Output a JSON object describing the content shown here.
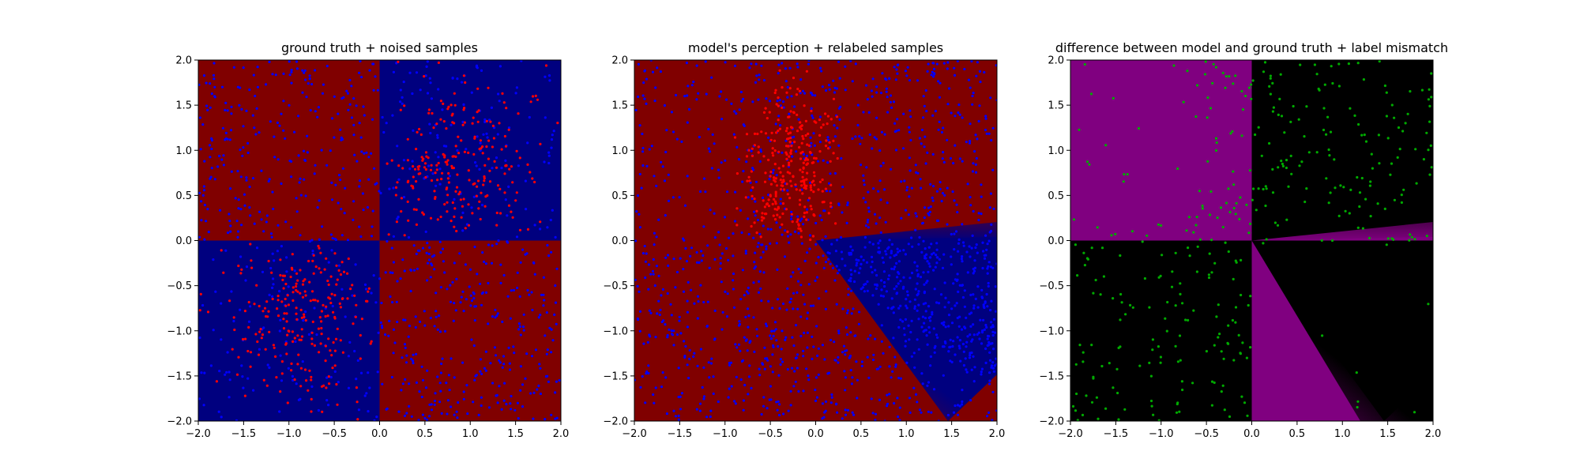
{
  "chart_data": [
    {
      "type": "scatter",
      "title": "ground truth + noised samples",
      "xlabel": "",
      "ylabel": "",
      "xlim": [
        -2.0,
        2.0
      ],
      "ylim": [
        -2.0,
        2.0
      ],
      "x_ticks": [
        "-2.0",
        "-1.5",
        "-1.0",
        "-0.5",
        "0.0",
        "0.5",
        "1.0",
        "1.5",
        "2.0"
      ],
      "y_ticks": [
        "2.0",
        "1.5",
        "1.0",
        "0.5",
        "0.0",
        "-0.5",
        "-1.0",
        "-1.5",
        "-2.0"
      ],
      "grid": false,
      "background": {
        "kind": "checkerboard",
        "regions": [
          {
            "x": [
              -2,
              0
            ],
            "y": [
              0,
              2
            ],
            "color": "#800000"
          },
          {
            "x": [
              0,
              2
            ],
            "y": [
              0,
              2
            ],
            "color": "#00007f"
          },
          {
            "x": [
              -2,
              0
            ],
            "y": [
              -2,
              0
            ],
            "color": "#00007f"
          },
          {
            "x": [
              0,
              2
            ],
            "y": [
              -2,
              0
            ],
            "color": "#800000"
          }
        ]
      },
      "series": [
        {
          "color": "#ff0000",
          "approx_count": 470,
          "region": "label flipped to red, mostly in blue quadrants (x>0,y>0 and x<0,y<0)"
        },
        {
          "color": "#0000ff",
          "approx_count": 1530,
          "region": "blue samples spread over all quadrants"
        }
      ]
    },
    {
      "type": "scatter",
      "title": "model's perception + relabeled samples",
      "xlabel": "",
      "ylabel": "",
      "xlim": [
        -2.0,
        2.0
      ],
      "ylim": [
        -2.0,
        2.0
      ],
      "x_ticks": [
        "-2.0",
        "-1.5",
        "-1.0",
        "-0.5",
        "0.0",
        "0.5",
        "1.0",
        "1.5",
        "2.0"
      ],
      "y_ticks": [
        "2.0",
        "1.5",
        "1.0",
        "0.5",
        "0.0",
        "-0.5",
        "-1.0",
        "-1.5",
        "-2.0"
      ],
      "grid": false,
      "background": {
        "kind": "decision-region",
        "base_color": "#800000",
        "wedge_color": "#00007f",
        "wedge": {
          "apex": [
            0.0,
            0.0
          ],
          "upper_edge_slope": 0.1,
          "lower_edge_slope": -0.75
        }
      },
      "series": [
        {
          "color": "#ff0000",
          "approx_count": 300,
          "region": "red cluster near x in [-0.7, 0.2], y in [0, 1.6]"
        },
        {
          "color": "#0000ff",
          "approx_count": 1700,
          "region": "blue samples spread, dense inside blue wedge"
        }
      ]
    },
    {
      "type": "scatter",
      "title": "difference between model and ground truth + label mismatch",
      "xlabel": "",
      "ylabel": "",
      "xlim": [
        -2.0,
        2.0
      ],
      "ylim": [
        -2.0,
        2.0
      ],
      "x_ticks": [
        "-2.0",
        "-1.5",
        "-1.0",
        "-0.5",
        "0.0",
        "0.5",
        "1.0",
        "1.5",
        "2.0"
      ],
      "y_ticks": [
        "2.0",
        "1.5",
        "1.0",
        "0.5",
        "0.0",
        "-0.5",
        "-1.0",
        "-1.5",
        "-2.0"
      ],
      "grid": false,
      "background": {
        "kind": "difference-map",
        "mismatch_color": "#800080",
        "match_color": "#000000",
        "regions": [
          {
            "x": [
              -2,
              0
            ],
            "y": [
              0,
              2
            ],
            "color": "#800080"
          },
          {
            "x": [
              0,
              2
            ],
            "y": [
              0,
              2
            ],
            "color": "#000000"
          },
          {
            "x": [
              -2,
              0
            ],
            "y": [
              -2,
              0
            ],
            "color": "#000000"
          },
          {
            "x": [
              0,
              2
            ],
            "y": [
              -2,
              0
            ],
            "color": "#800080"
          }
        ]
      },
      "series": [
        {
          "color": "#00aa00",
          "approx_count": 520,
          "region": "label mismatch points in upper-right, lower-left and upper-left quadrants"
        }
      ]
    }
  ]
}
